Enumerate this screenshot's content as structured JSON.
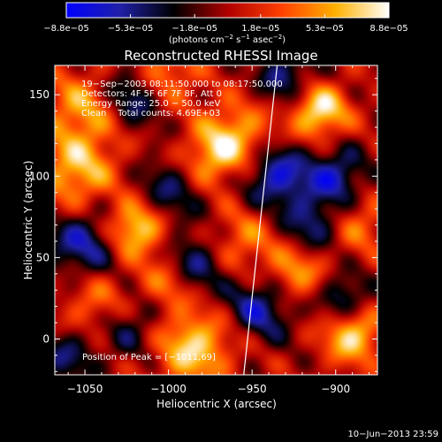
{
  "chart_data": {
    "type": "heatmap",
    "title": "Reconstructed RHESSI Image",
    "xlabel": "Heliocentric X (arcsec)",
    "ylabel": "Heliocentric Y (arcsec)",
    "xlim": [
      -1068,
      -875
    ],
    "ylim": [
      -22,
      168
    ],
    "x_ticks": [
      -1050,
      -1000,
      -950,
      -900
    ],
    "x_tick_labels": [
      "−1050",
      "−1000",
      "−950",
      "−900"
    ],
    "y_ticks": [
      0,
      50,
      100,
      150
    ],
    "y_tick_labels": [
      "0",
      "50",
      "100",
      "150"
    ],
    "colorbar": {
      "min": -8.8e-05,
      "max": 8.8e-05,
      "ticks": [
        -8.8e-05,
        -5.3e-05,
        -1.8e-05,
        1.8e-05,
        5.3e-05,
        8.8e-05
      ],
      "tick_labels": [
        "−8.8e−05",
        "−5.3e−05",
        "−1.8e−05",
        "1.8e−05",
        "5.3e−05",
        "8.8e−05"
      ],
      "unit_parts": [
        "(photons cm",
        "−2",
        " s",
        "−1",
        " asec",
        "−2",
        ")"
      ],
      "colors": [
        "#0000ff",
        "#2020a8",
        "#000000",
        "#b00000",
        "#ff4000",
        "#ffb000",
        "#ffffff"
      ]
    },
    "annotations": [
      "19−Sep−2003 08:11:50.000 to 08:17:50.000",
      "Detectors: 4F 5F 6F 7F 8F, Att 0",
      "Energy Range: 25.0 − 50.0 keV",
      "Clean    Total counts: 4.69E+03"
    ],
    "peak_label": "Position of Peak = [−1011,69]",
    "footer": "10−Jun−2013 23:59",
    "limb_line": [
      [
        -955,
        -22
      ],
      [
        -935,
        168
      ]
    ],
    "sources": [
      {
        "x": -1020,
        "y": 68,
        "amp": 1.0,
        "w": 12
      },
      {
        "x": -910,
        "y": 140,
        "amp": 0.95,
        "w": 12
      },
      {
        "x": -1005,
        "y": 160,
        "amp": 0.75,
        "w": 14
      },
      {
        "x": -985,
        "y": -5,
        "amp": 0.85,
        "w": 16
      },
      {
        "x": -890,
        "y": 2,
        "amp": 0.85,
        "w": 12
      },
      {
        "x": -1055,
        "y": 100,
        "amp": 0.7,
        "w": 16
      },
      {
        "x": -1050,
        "y": 140,
        "amp": 0.65,
        "w": 18
      },
      {
        "x": -960,
        "y": 125,
        "amp": 0.7,
        "w": 15
      },
      {
        "x": -925,
        "y": 40,
        "amp": 0.65,
        "w": 12
      },
      {
        "x": -1040,
        "y": 20,
        "amp": 0.6,
        "w": 15
      },
      {
        "x": -975,
        "y": 110,
        "amp": 0.55,
        "w": 12
      },
      {
        "x": -955,
        "y": 60,
        "amp": 0.5,
        "w": 14
      },
      {
        "x": -885,
        "y": 70,
        "amp": 0.45,
        "w": 12
      },
      {
        "x": -1000,
        "y": 35,
        "amp": 0.55,
        "w": 12
      },
      {
        "x": -1020,
        "y": 150,
        "amp": -0.9,
        "w": 14
      },
      {
        "x": -1050,
        "y": 60,
        "amp": -0.7,
        "w": 16
      },
      {
        "x": -935,
        "y": 100,
        "amp": -0.8,
        "w": 14
      },
      {
        "x": -900,
        "y": 100,
        "amp": -0.7,
        "w": 12
      },
      {
        "x": -930,
        "y": 160,
        "amp": -0.6,
        "w": 12
      },
      {
        "x": -985,
        "y": 45,
        "amp": -0.65,
        "w": 13
      },
      {
        "x": -945,
        "y": 20,
        "amp": -0.7,
        "w": 14
      },
      {
        "x": -1025,
        "y": 10,
        "amp": -0.6,
        "w": 14
      },
      {
        "x": -1000,
        "y": 90,
        "amp": -0.5,
        "w": 14
      },
      {
        "x": -895,
        "y": 25,
        "amp": -0.6,
        "w": 10
      },
      {
        "x": -1060,
        "y": -10,
        "amp": -0.5,
        "w": 12
      },
      {
        "x": -915,
        "y": 70,
        "amp": -0.55,
        "w": 12
      }
    ]
  }
}
